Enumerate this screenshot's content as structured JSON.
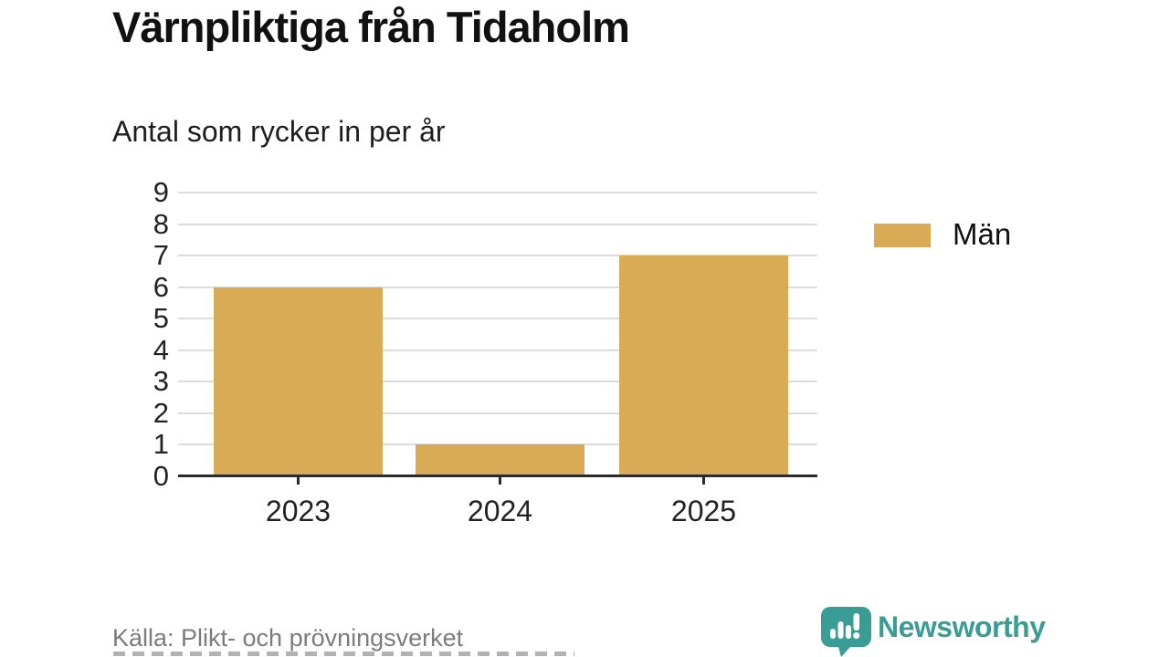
{
  "title": "Värnpliktiga från Tidaholm",
  "subtitle": "Antal som rycker in per år",
  "legend": {
    "label": "Män",
    "color": "#d9ab57"
  },
  "source_note": "Källa: Plikt- och prövningsverket",
  "brand": {
    "name": "Newsworthy",
    "color": "#3a9d95",
    "icon": "speech-bubble-bar-chart-icon"
  },
  "colors": {
    "bar": "#d9ab57",
    "grid": "#dcdcdc",
    "axis": "#2b2b2b",
    "text": "#1a1a1a",
    "source_text": "#7b7b80"
  },
  "chart_data": {
    "type": "bar",
    "categories": [
      "2023",
      "2024",
      "2025"
    ],
    "series": [
      {
        "name": "Män",
        "values": [
          6,
          1,
          7
        ]
      }
    ],
    "title": "Värnpliktiga från Tidaholm",
    "subtitle": "Antal som rycker in per år",
    "xlabel": "",
    "ylabel": "",
    "ylim": [
      0,
      9
    ],
    "yticks": [
      0,
      1,
      2,
      3,
      4,
      5,
      6,
      7,
      8,
      9
    ],
    "grid": true,
    "legend_position": "right",
    "bar_color": "#d9ab57"
  }
}
